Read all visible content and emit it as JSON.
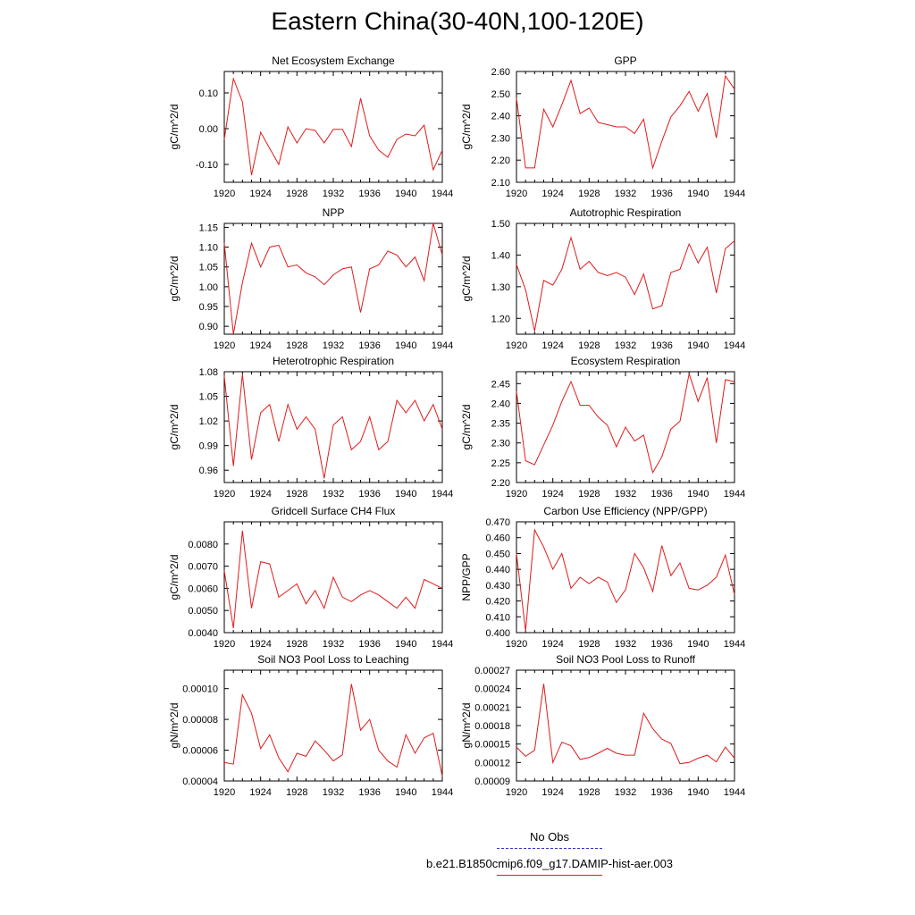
{
  "title": "Eastern China(30-40N,100-120E)",
  "legend": {
    "entries": [
      {
        "label": "No Obs",
        "color": "#3333cc",
        "style": "dashed"
      },
      {
        "label": "b.e21.B1850cmip6.f09_g17.DAMIP-hist-aer.003",
        "color": "#e01b1b",
        "style": "solid"
      }
    ]
  },
  "series_color": "#e01b1b",
  "chart_data": [
    {
      "type": "line",
      "title": "Net Ecosystem Exchange",
      "ylabel": "gC/m^2/d",
      "xlim": [
        1920,
        1944
      ],
      "ylim": [
        -0.15,
        0.16
      ],
      "xticks": [
        "1920",
        "1924",
        "1928",
        "1932",
        "1936",
        "1940",
        "1944"
      ],
      "yticks": [
        {
          "v": -0.1,
          "label": "-0.10"
        },
        {
          "v": 0.0,
          "label": "0.00"
        },
        {
          "v": 0.1,
          "label": "0.10"
        }
      ],
      "x": [
        1920,
        1921,
        1922,
        1923,
        1924,
        1925,
        1926,
        1927,
        1928,
        1929,
        1930,
        1931,
        1932,
        1933,
        1934,
        1935,
        1936,
        1937,
        1938,
        1939,
        1940,
        1941,
        1942,
        1943,
        1944
      ],
      "values": [
        -0.03,
        0.14,
        0.075,
        -0.13,
        -0.01,
        -0.055,
        -0.1,
        0.005,
        -0.04,
        0.0,
        -0.005,
        -0.04,
        -0.002,
        -0.002,
        -0.05,
        0.085,
        -0.02,
        -0.06,
        -0.08,
        -0.03,
        -0.015,
        -0.02,
        0.01,
        -0.115,
        -0.06
      ]
    },
    {
      "type": "line",
      "title": "GPP",
      "ylabel": "gC/m^2/d",
      "xlim": [
        1920,
        1944
      ],
      "ylim": [
        2.1,
        2.6
      ],
      "xticks": [
        "1920",
        "1924",
        "1928",
        "1932",
        "1936",
        "1940",
        "1944"
      ],
      "yticks": [
        {
          "v": 2.1,
          "label": "2.10"
        },
        {
          "v": 2.2,
          "label": "2.20"
        },
        {
          "v": 2.3,
          "label": "2.30"
        },
        {
          "v": 2.4,
          "label": "2.40"
        },
        {
          "v": 2.5,
          "label": "2.50"
        },
        {
          "v": 2.6,
          "label": "2.60"
        }
      ],
      "x": [
        1920,
        1921,
        1922,
        1923,
        1924,
        1925,
        1926,
        1927,
        1928,
        1929,
        1930,
        1931,
        1932,
        1933,
        1934,
        1935,
        1936,
        1937,
        1938,
        1939,
        1940,
        1941,
        1942,
        1943,
        1944
      ],
      "values": [
        2.48,
        2.165,
        2.165,
        2.43,
        2.35,
        2.45,
        2.56,
        2.41,
        2.435,
        2.37,
        2.36,
        2.35,
        2.35,
        2.32,
        2.385,
        2.165,
        2.285,
        2.395,
        2.445,
        2.51,
        2.42,
        2.5,
        2.3,
        2.58,
        2.52
      ]
    },
    {
      "type": "line",
      "title": "NPP",
      "ylabel": "gC/m^2/d",
      "xlim": [
        1920,
        1944
      ],
      "ylim": [
        0.88,
        1.16
      ],
      "xticks": [
        "1920",
        "1924",
        "1928",
        "1932",
        "1936",
        "1940",
        "1944"
      ],
      "yticks": [
        {
          "v": 0.9,
          "label": "0.90"
        },
        {
          "v": 0.95,
          "label": "0.95"
        },
        {
          "v": 1.0,
          "label": "1.00"
        },
        {
          "v": 1.05,
          "label": "1.05"
        },
        {
          "v": 1.1,
          "label": "1.10"
        },
        {
          "v": 1.15,
          "label": "1.15"
        }
      ],
      "x": [
        1920,
        1921,
        1922,
        1923,
        1924,
        1925,
        1926,
        1927,
        1928,
        1929,
        1930,
        1931,
        1932,
        1933,
        1934,
        1935,
        1936,
        1937,
        1938,
        1939,
        1940,
        1941,
        1942,
        1943,
        1944
      ],
      "values": [
        1.11,
        0.88,
        1.01,
        1.11,
        1.05,
        1.1,
        1.105,
        1.05,
        1.055,
        1.035,
        1.025,
        1.005,
        1.03,
        1.045,
        1.05,
        0.935,
        1.045,
        1.055,
        1.09,
        1.08,
        1.05,
        1.075,
        1.015,
        1.16,
        1.08
      ]
    },
    {
      "type": "line",
      "title": "Autotrophic Respiration",
      "ylabel": "gC/m^2/d",
      "xlim": [
        1920,
        1944
      ],
      "ylim": [
        1.15,
        1.5
      ],
      "xticks": [
        "1920",
        "1924",
        "1928",
        "1932",
        "1936",
        "1940",
        "1944"
      ],
      "yticks": [
        {
          "v": 1.2,
          "label": "1.20"
        },
        {
          "v": 1.3,
          "label": "1.30"
        },
        {
          "v": 1.4,
          "label": "1.40"
        },
        {
          "v": 1.5,
          "label": "1.50"
        }
      ],
      "x": [
        1920,
        1921,
        1922,
        1923,
        1924,
        1925,
        1926,
        1927,
        1928,
        1929,
        1930,
        1931,
        1932,
        1933,
        1934,
        1935,
        1936,
        1937,
        1938,
        1939,
        1940,
        1941,
        1942,
        1943,
        1944
      ],
      "values": [
        1.37,
        1.29,
        1.16,
        1.32,
        1.305,
        1.355,
        1.455,
        1.355,
        1.38,
        1.345,
        1.335,
        1.345,
        1.33,
        1.275,
        1.34,
        1.23,
        1.24,
        1.345,
        1.355,
        1.435,
        1.375,
        1.425,
        1.28,
        1.42,
        1.445
      ]
    },
    {
      "type": "line",
      "title": "Heterotrophic Respiration",
      "ylabel": "gC/m^2/d",
      "xlim": [
        1920,
        1944
      ],
      "ylim": [
        0.945,
        1.08
      ],
      "xticks": [
        "1920",
        "1924",
        "1928",
        "1932",
        "1936",
        "1940",
        "1944"
      ],
      "yticks": [
        {
          "v": 0.96,
          "label": "0.96"
        },
        {
          "v": 0.99,
          "label": "0.99"
        },
        {
          "v": 1.02,
          "label": "1.02"
        },
        {
          "v": 1.05,
          "label": "1.05"
        },
        {
          "v": 1.08,
          "label": "1.08"
        }
      ],
      "x": [
        1920,
        1921,
        1922,
        1923,
        1924,
        1925,
        1926,
        1927,
        1928,
        1929,
        1930,
        1931,
        1932,
        1933,
        1934,
        1935,
        1936,
        1937,
        1938,
        1939,
        1940,
        1941,
        1942,
        1943,
        1944
      ],
      "values": [
        1.075,
        0.965,
        1.077,
        0.973,
        1.03,
        1.04,
        0.995,
        1.04,
        1.01,
        1.025,
        1.01,
        0.95,
        1.015,
        1.025,
        0.985,
        0.995,
        1.025,
        0.985,
        0.995,
        1.045,
        1.03,
        1.045,
        1.02,
        1.04,
        1.01
      ]
    },
    {
      "type": "line",
      "title": "Ecosystem Respiration",
      "ylabel": "gC/m^2/d",
      "xlim": [
        1920,
        1944
      ],
      "ylim": [
        2.2,
        2.48
      ],
      "xticks": [
        "1920",
        "1924",
        "1928",
        "1932",
        "1936",
        "1940",
        "1944"
      ],
      "yticks": [
        {
          "v": 2.2,
          "label": "2.20"
        },
        {
          "v": 2.25,
          "label": "2.25"
        },
        {
          "v": 2.3,
          "label": "2.30"
        },
        {
          "v": 2.35,
          "label": "2.35"
        },
        {
          "v": 2.4,
          "label": "2.40"
        },
        {
          "v": 2.45,
          "label": "2.45"
        }
      ],
      "x": [
        1920,
        1921,
        1922,
        1923,
        1924,
        1925,
        1926,
        1927,
        1928,
        1929,
        1930,
        1931,
        1932,
        1933,
        1934,
        1935,
        1936,
        1937,
        1938,
        1939,
        1940,
        1941,
        1942,
        1943,
        1944
      ],
      "values": [
        2.43,
        2.255,
        2.245,
        2.295,
        2.345,
        2.405,
        2.455,
        2.395,
        2.395,
        2.365,
        2.345,
        2.29,
        2.34,
        2.305,
        2.32,
        2.225,
        2.265,
        2.335,
        2.355,
        2.475,
        2.405,
        2.465,
        2.3,
        2.46,
        2.455
      ]
    },
    {
      "type": "line",
      "title": "Gridcell Surface CH4 Flux",
      "ylabel": "gC/m^2/d",
      "xlim": [
        1920,
        1944
      ],
      "ylim": [
        0.004,
        0.009
      ],
      "xticks": [
        "1920",
        "1924",
        "1928",
        "1932",
        "1936",
        "1940",
        "1944"
      ],
      "yticks": [
        {
          "v": 0.004,
          "label": "0.0040"
        },
        {
          "v": 0.005,
          "label": "0.0050"
        },
        {
          "v": 0.006,
          "label": "0.0060"
        },
        {
          "v": 0.007,
          "label": "0.0070"
        },
        {
          "v": 0.008,
          "label": "0.0080"
        }
      ],
      "x": [
        1920,
        1921,
        1922,
        1923,
        1924,
        1925,
        1926,
        1927,
        1928,
        1929,
        1930,
        1931,
        1932,
        1933,
        1934,
        1935,
        1936,
        1937,
        1938,
        1939,
        1940,
        1941,
        1942,
        1943,
        1944
      ],
      "values": [
        0.0068,
        0.0042,
        0.0086,
        0.0051,
        0.0072,
        0.0071,
        0.0056,
        0.0059,
        0.0062,
        0.0053,
        0.0059,
        0.0051,
        0.0065,
        0.0056,
        0.0054,
        0.0057,
        0.0059,
        0.0057,
        0.0054,
        0.0051,
        0.0056,
        0.0051,
        0.0064,
        0.0062,
        0.006
      ]
    },
    {
      "type": "line",
      "title": "Carbon Use Efficiency (NPP/GPP)",
      "ylabel": "NPP/GPP",
      "xlim": [
        1920,
        1944
      ],
      "ylim": [
        0.4,
        0.47
      ],
      "xticks": [
        "1920",
        "1924",
        "1928",
        "1932",
        "1936",
        "1940",
        "1944"
      ],
      "yticks": [
        {
          "v": 0.4,
          "label": "0.400"
        },
        {
          "v": 0.41,
          "label": "0.410"
        },
        {
          "v": 0.42,
          "label": "0.420"
        },
        {
          "v": 0.43,
          "label": "0.430"
        },
        {
          "v": 0.44,
          "label": "0.440"
        },
        {
          "v": 0.45,
          "label": "0.450"
        },
        {
          "v": 0.46,
          "label": "0.460"
        },
        {
          "v": 0.47,
          "label": "0.470"
        }
      ],
      "x": [
        1920,
        1921,
        1922,
        1923,
        1924,
        1925,
        1926,
        1927,
        1928,
        1929,
        1930,
        1931,
        1932,
        1933,
        1934,
        1935,
        1936,
        1937,
        1938,
        1939,
        1940,
        1941,
        1942,
        1943,
        1944
      ],
      "values": [
        0.45,
        0.401,
        0.465,
        0.454,
        0.44,
        0.45,
        0.428,
        0.435,
        0.431,
        0.435,
        0.432,
        0.419,
        0.427,
        0.45,
        0.441,
        0.426,
        0.455,
        0.436,
        0.444,
        0.428,
        0.427,
        0.43,
        0.435,
        0.449,
        0.424
      ]
    },
    {
      "type": "line",
      "title": "Soil NO3 Pool Loss to Leaching",
      "ylabel": "gN/m^2/d",
      "xlim": [
        1920,
        1944
      ],
      "ylim": [
        4e-05,
        0.000112
      ],
      "xticks": [
        "1920",
        "1924",
        "1928",
        "1932",
        "1936",
        "1940",
        "1944"
      ],
      "yticks": [
        {
          "v": 4e-05,
          "label": "0.00004"
        },
        {
          "v": 6e-05,
          "label": "0.00006"
        },
        {
          "v": 8e-05,
          "label": "0.00008"
        },
        {
          "v": 0.0001,
          "label": "0.00010"
        }
      ],
      "x": [
        1920,
        1921,
        1922,
        1923,
        1924,
        1925,
        1926,
        1927,
        1928,
        1929,
        1930,
        1931,
        1932,
        1933,
        1934,
        1935,
        1936,
        1937,
        1938,
        1939,
        1940,
        1941,
        1942,
        1943,
        1944
      ],
      "values": [
        5.2e-05,
        5.1e-05,
        9.6e-05,
        8.4e-05,
        6.1e-05,
        7e-05,
        5.5e-05,
        4.6e-05,
        5.8e-05,
        5.6e-05,
        6.6e-05,
        6e-05,
        5.3e-05,
        5.7e-05,
        0.000103,
        7.3e-05,
        8e-05,
        6e-05,
        5.3e-05,
        4.9e-05,
        7e-05,
        5.8e-05,
        6.8e-05,
        7.1e-05,
        4.3e-05
      ]
    },
    {
      "type": "line",
      "title": "Soil NO3 Pool Loss to Runoff",
      "ylabel": "gN/m^2/d",
      "xlim": [
        1920,
        1944
      ],
      "ylim": [
        9e-05,
        0.00027
      ],
      "xticks": [
        "1920",
        "1924",
        "1928",
        "1932",
        "1936",
        "1940",
        "1944"
      ],
      "yticks": [
        {
          "v": 9e-05,
          "label": "0.00009"
        },
        {
          "v": 0.00012,
          "label": "0.00012"
        },
        {
          "v": 0.00015,
          "label": "0.00015"
        },
        {
          "v": 0.00018,
          "label": "0.00018"
        },
        {
          "v": 0.00021,
          "label": "0.00021"
        },
        {
          "v": 0.00024,
          "label": "0.00024"
        },
        {
          "v": 0.00027,
          "label": "0.00027"
        }
      ],
      "x": [
        1920,
        1921,
        1922,
        1923,
        1924,
        1925,
        1926,
        1927,
        1928,
        1929,
        1930,
        1931,
        1932,
        1933,
        1934,
        1935,
        1936,
        1937,
        1938,
        1939,
        1940,
        1941,
        1942,
        1943,
        1944
      ],
      "values": [
        0.000145,
        0.00013,
        0.00014,
        0.000248,
        0.00012,
        0.000153,
        0.000147,
        0.000125,
        0.000128,
        0.000135,
        0.000143,
        0.000135,
        0.000132,
        0.000132,
        0.0002,
        0.000175,
        0.000158,
        0.000151,
        0.000118,
        0.00012,
        0.000127,
        0.000132,
        0.000121,
        0.000145,
        0.000127
      ]
    }
  ]
}
